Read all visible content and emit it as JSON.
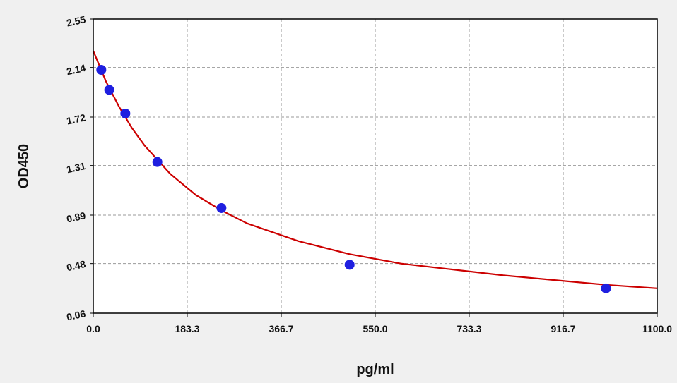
{
  "colors": {
    "background": "#f0f0f0",
    "plot_background": "#ffffff",
    "grid": "#9a9a9a",
    "axis": "#000000",
    "curve": "#cc0000",
    "points": "#1f1fe0"
  },
  "chart_data": {
    "type": "scatter",
    "title": "",
    "xlabel": "pg/ml",
    "ylabel": "OD450",
    "xlim": [
      0,
      1100
    ],
    "ylim": [
      0.06,
      2.55
    ],
    "x_ticks": [
      "0.0",
      "183.3",
      "366.7",
      "550.0",
      "733.3",
      "916.7",
      "1100.0"
    ],
    "y_ticks": [
      "0.06",
      "0.48",
      "0.89",
      "1.31",
      "1.72",
      "2.14",
      "2.55"
    ],
    "grid": true,
    "series": [
      {
        "kind": "points",
        "x": [
          15.6,
          31.2,
          62.5,
          125,
          250,
          500,
          1000
        ],
        "y": [
          2.12,
          1.95,
          1.75,
          1.34,
          0.95,
          0.47,
          0.27
        ]
      },
      {
        "kind": "fitted-curve",
        "x": [
          0,
          25,
          50,
          75,
          100,
          150,
          200,
          250,
          300,
          400,
          500,
          600,
          700,
          800,
          900,
          1000,
          1100
        ],
        "y": [
          2.28,
          2.02,
          1.81,
          1.63,
          1.48,
          1.24,
          1.06,
          0.93,
          0.82,
          0.67,
          0.56,
          0.48,
          0.43,
          0.38,
          0.34,
          0.3,
          0.27
        ]
      }
    ]
  }
}
